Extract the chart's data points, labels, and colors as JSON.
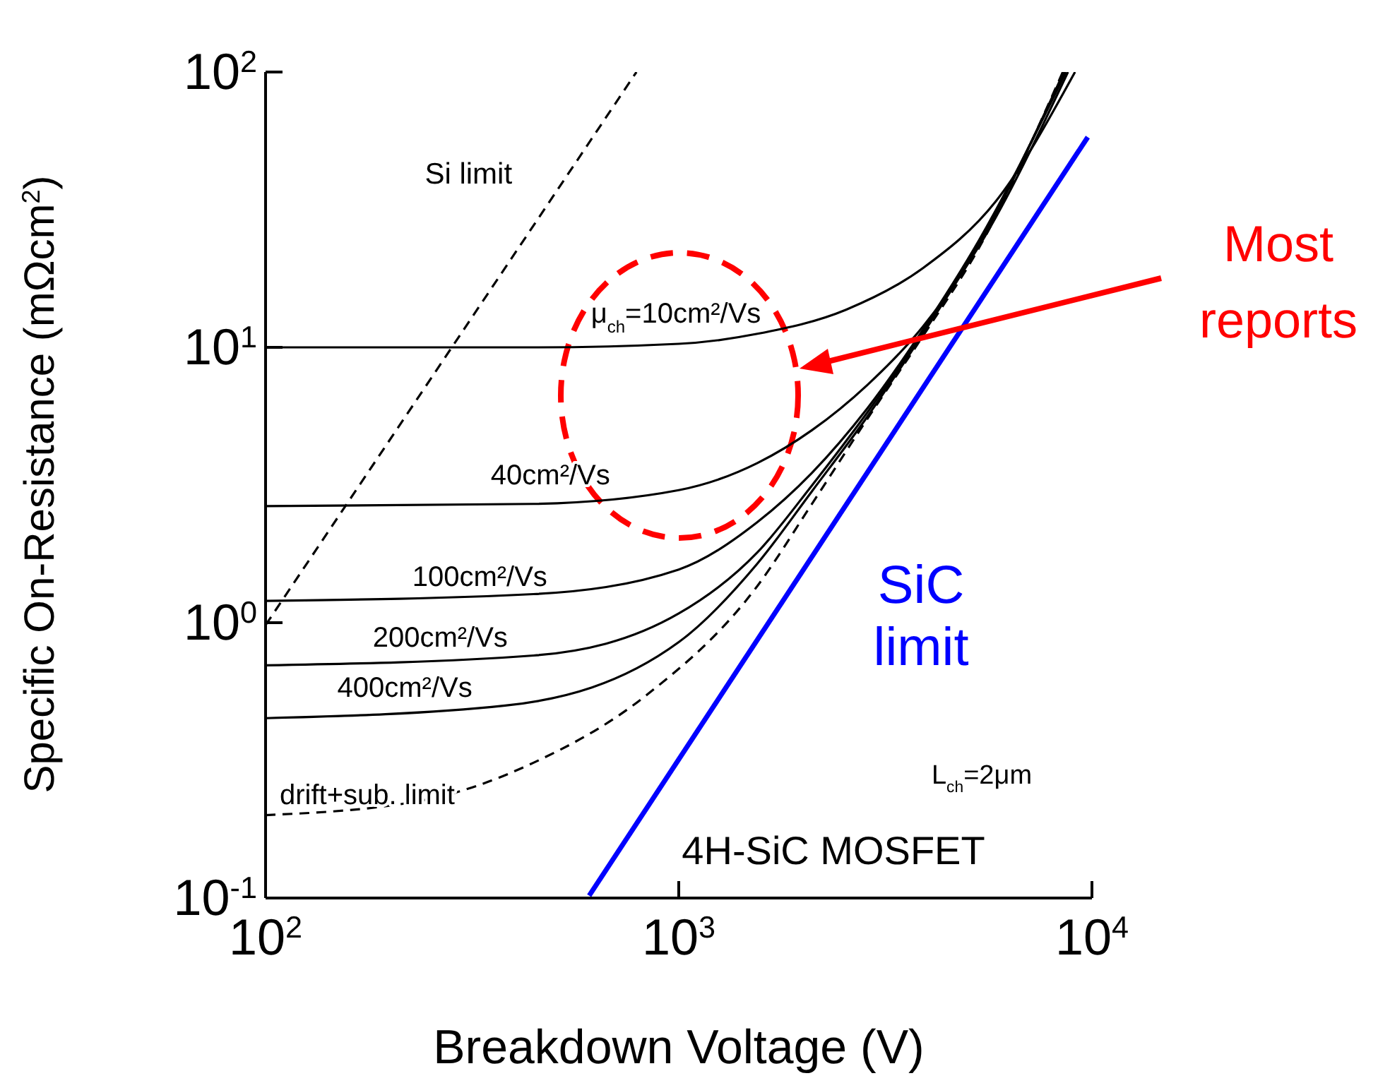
{
  "chart_data": {
    "type": "line",
    "xlabel": "Breakdown Voltage  (V)",
    "ylabel": "Specific On-Resistance  (mΩcm$^{2}$)",
    "log": "xy",
    "xlim": [
      100,
      10000
    ],
    "ylim": [
      0.1,
      100
    ],
    "xticks": [
      {
        "value": 100,
        "label": "10$^{2}$"
      },
      {
        "value": 1000,
        "label": "10$^{3}$"
      },
      {
        "value": 10000,
        "label": "10$^{4}$"
      }
    ],
    "yticks": [
      {
        "value": 0.1,
        "label": "10$^{-1}$"
      },
      {
        "value": 1,
        "label": "10$^{0}$"
      },
      {
        "value": 10,
        "label": "10$^{1}$"
      },
      {
        "value": 100,
        "label": "10$^{2}$"
      }
    ],
    "grid": false,
    "legend": false,
    "marker": "none",
    "series": [
      {
        "name": "Si limit",
        "color": "#000000",
        "line_style": "dashed",
        "x": [
          100,
          790
        ],
        "values": [
          0.98,
          100
        ]
      },
      {
        "name": "μ$_{ch}$=10cm²/Vs",
        "color": "#000000",
        "line_style": "solid",
        "x": [
          100,
          445,
          1000,
          1550,
          2540,
          3900,
          5860,
          9100
        ],
        "values": [
          10,
          10,
          10.3,
          11.2,
          13.7,
          19.4,
          34,
          100
        ]
      },
      {
        "name": "40cm²/Vs",
        "color": "#000000",
        "line_style": "solid",
        "x": [
          100,
          445,
          1000,
          1550,
          2100,
          2860,
          3900,
          5330,
          8750
        ],
        "values": [
          2.65,
          2.7,
          3.03,
          3.8,
          5,
          7.3,
          11.9,
          23.3,
          100
        ]
      },
      {
        "name": "100cm²/Vs",
        "color": "#000000",
        "line_style": "solid",
        "x": [
          100,
          445,
          1000,
          1550,
          2100,
          2860,
          3900,
          5330,
          8650
        ],
        "values": [
          1.2,
          1.27,
          1.56,
          2.32,
          3.5,
          6,
          11.6,
          24.5,
          100
        ]
      },
      {
        "name": "200cm²/Vs",
        "color": "#000000",
        "line_style": "solid",
        "x": [
          100,
          445,
          1000,
          1550,
          2100,
          2860,
          3900,
          5330,
          8600
        ],
        "values": [
          0.7,
          0.76,
          1.08,
          1.8,
          3.15,
          5.8,
          11.3,
          24,
          100
        ]
      },
      {
        "name": "400cm²/Vs",
        "color": "#000000",
        "line_style": "solid",
        "x": [
          100,
          380,
          1000,
          1550,
          2100,
          2860,
          3900,
          5330,
          8550
        ],
        "values": [
          0.45,
          0.5,
          0.85,
          1.64,
          3,
          5.6,
          11.2,
          23.6,
          100
        ]
      },
      {
        "name": "drift+sub. limit",
        "color": "#000000",
        "line_style": "dashed",
        "x": [
          100,
          239,
          445,
          828,
          1550,
          2100,
          2860,
          3900,
          5330,
          8500
        ],
        "values": [
          0.2,
          0.226,
          0.31,
          0.54,
          1.36,
          2.7,
          5.5,
          11,
          23,
          100
        ]
      },
      {
        "name": "SiC limit",
        "color": "#0000ff",
        "line_style": "solid",
        "x": [
          607,
          9770
        ],
        "values": [
          0.102,
          58
        ]
      }
    ],
    "annotations": [
      "L$_{ch}$=2μm",
      "4H-SiC MOSFET",
      "Most reports"
    ]
  }
}
